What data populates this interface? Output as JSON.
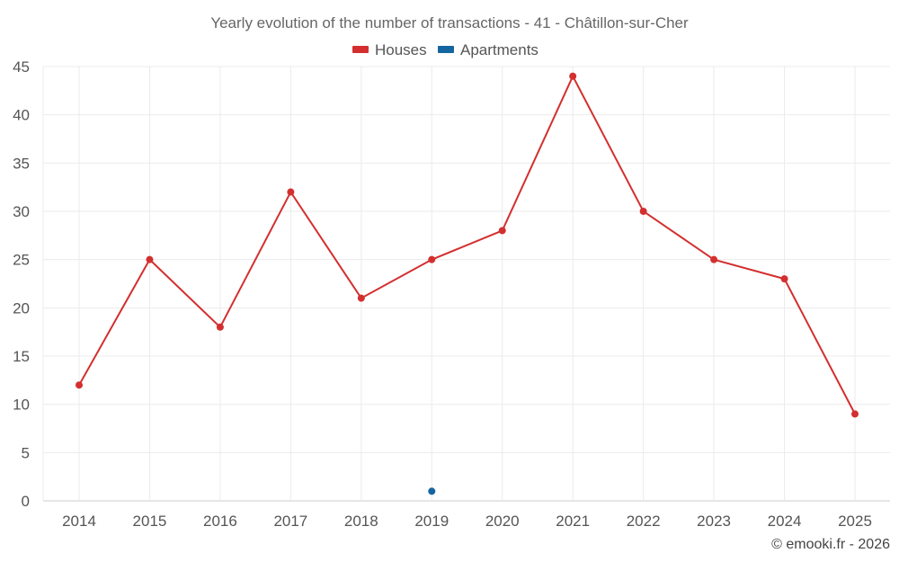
{
  "chart_data": {
    "type": "line",
    "title": "Yearly evolution of the number of transactions - 41 - Châtillon-sur-Cher",
    "categories": [
      "2014",
      "2015",
      "2016",
      "2017",
      "2018",
      "2019",
      "2020",
      "2021",
      "2022",
      "2023",
      "2024",
      "2025"
    ],
    "series": [
      {
        "name": "Houses",
        "color": "#d32f2f",
        "values": [
          12,
          25,
          18,
          32,
          21,
          25,
          28,
          44,
          30,
          25,
          23,
          9
        ]
      },
      {
        "name": "Apartments",
        "color": "#1565a0",
        "values": [
          null,
          null,
          null,
          null,
          null,
          1,
          null,
          null,
          null,
          null,
          null,
          null
        ]
      }
    ],
    "ylim": [
      0,
      45
    ],
    "yticks": [
      0,
      5,
      10,
      15,
      20,
      25,
      30,
      35,
      40,
      45
    ],
    "grid": true,
    "legend": "top-center",
    "credit": "© emooki.fr - 2026"
  }
}
